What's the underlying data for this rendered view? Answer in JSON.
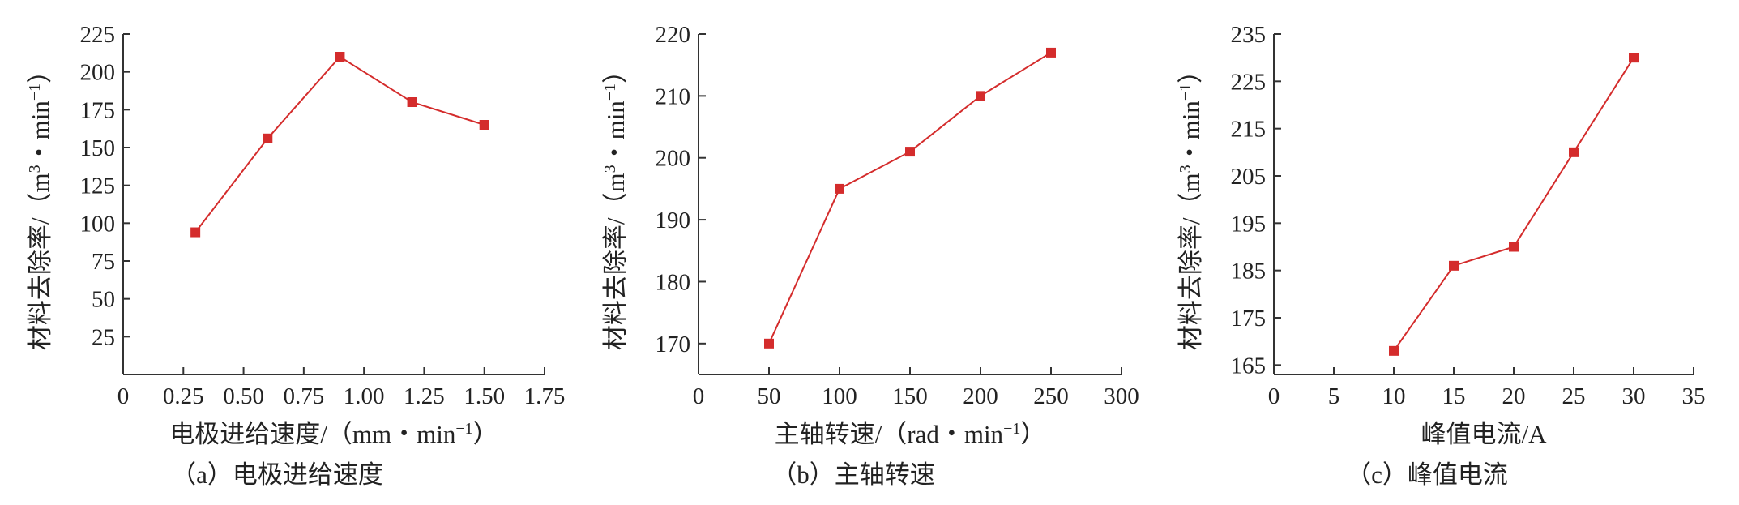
{
  "chart_data": [
    {
      "type": "line",
      "caption": "（a）电极进给速度",
      "xlabel": "电极进给速度/（mm・min",
      "xlabel_sup": "−1",
      "xlabel_end": "）",
      "ylabel": "材料去除率/（m",
      "ylabel_sup": "3",
      "ylabel_mid": "・min",
      "ylabel_sup2": "−1",
      "ylabel_end": "）",
      "xlim": [
        0,
        1.75
      ],
      "ylim": [
        0,
        225
      ],
      "x_ticks": [
        "0",
        "0.25",
        "0.50",
        "0.75",
        "1.00",
        "1.25",
        "1.50",
        "1.75"
      ],
      "y_ticks": [
        "25",
        "50",
        "75",
        "100",
        "125",
        "150",
        "175",
        "200",
        "225"
      ],
      "x": [
        0.3,
        0.6,
        0.9,
        1.2,
        1.5
      ],
      "values": [
        94,
        156,
        210,
        180,
        165
      ],
      "line_color": "#d42c2c",
      "marker": "square"
    },
    {
      "type": "line",
      "caption": "（b）主轴转速",
      "xlabel": "主轴转速/（rad・min",
      "xlabel_sup": "−1",
      "xlabel_end": "）",
      "ylabel": "材料去除率/（m",
      "ylabel_sup": "3",
      "ylabel_mid": "・min",
      "ylabel_sup2": "−1",
      "ylabel_end": "）",
      "xlim": [
        0,
        300
      ],
      "ylim": [
        165,
        220
      ],
      "x_ticks": [
        "0",
        "50",
        "100",
        "150",
        "200",
        "250",
        "300"
      ],
      "y_ticks": [
        "170",
        "180",
        "190",
        "200",
        "210",
        "220"
      ],
      "x": [
        50,
        100,
        150,
        200,
        250
      ],
      "values": [
        170,
        195,
        201,
        210,
        217
      ],
      "line_color": "#d42c2c",
      "marker": "square"
    },
    {
      "type": "line",
      "caption": "（c）峰值电流",
      "xlabel": "峰值电流/A",
      "xlabel_sup": "",
      "xlabel_end": "",
      "ylabel": "材料去除率/（m",
      "ylabel_sup": "3",
      "ylabel_mid": "・min",
      "ylabel_sup2": "−1",
      "ylabel_end": "）",
      "xlim": [
        0,
        35
      ],
      "ylim": [
        163,
        235
      ],
      "x_ticks": [
        "0",
        "5",
        "10",
        "15",
        "20",
        "25",
        "30",
        "35"
      ],
      "y_ticks": [
        "165",
        "175",
        "185",
        "195",
        "205",
        "215",
        "225",
        "235"
      ],
      "x": [
        10,
        15,
        20,
        25,
        30
      ],
      "values": [
        168,
        186,
        190,
        210,
        230
      ],
      "line_color": "#d42c2c",
      "marker": "square"
    }
  ]
}
